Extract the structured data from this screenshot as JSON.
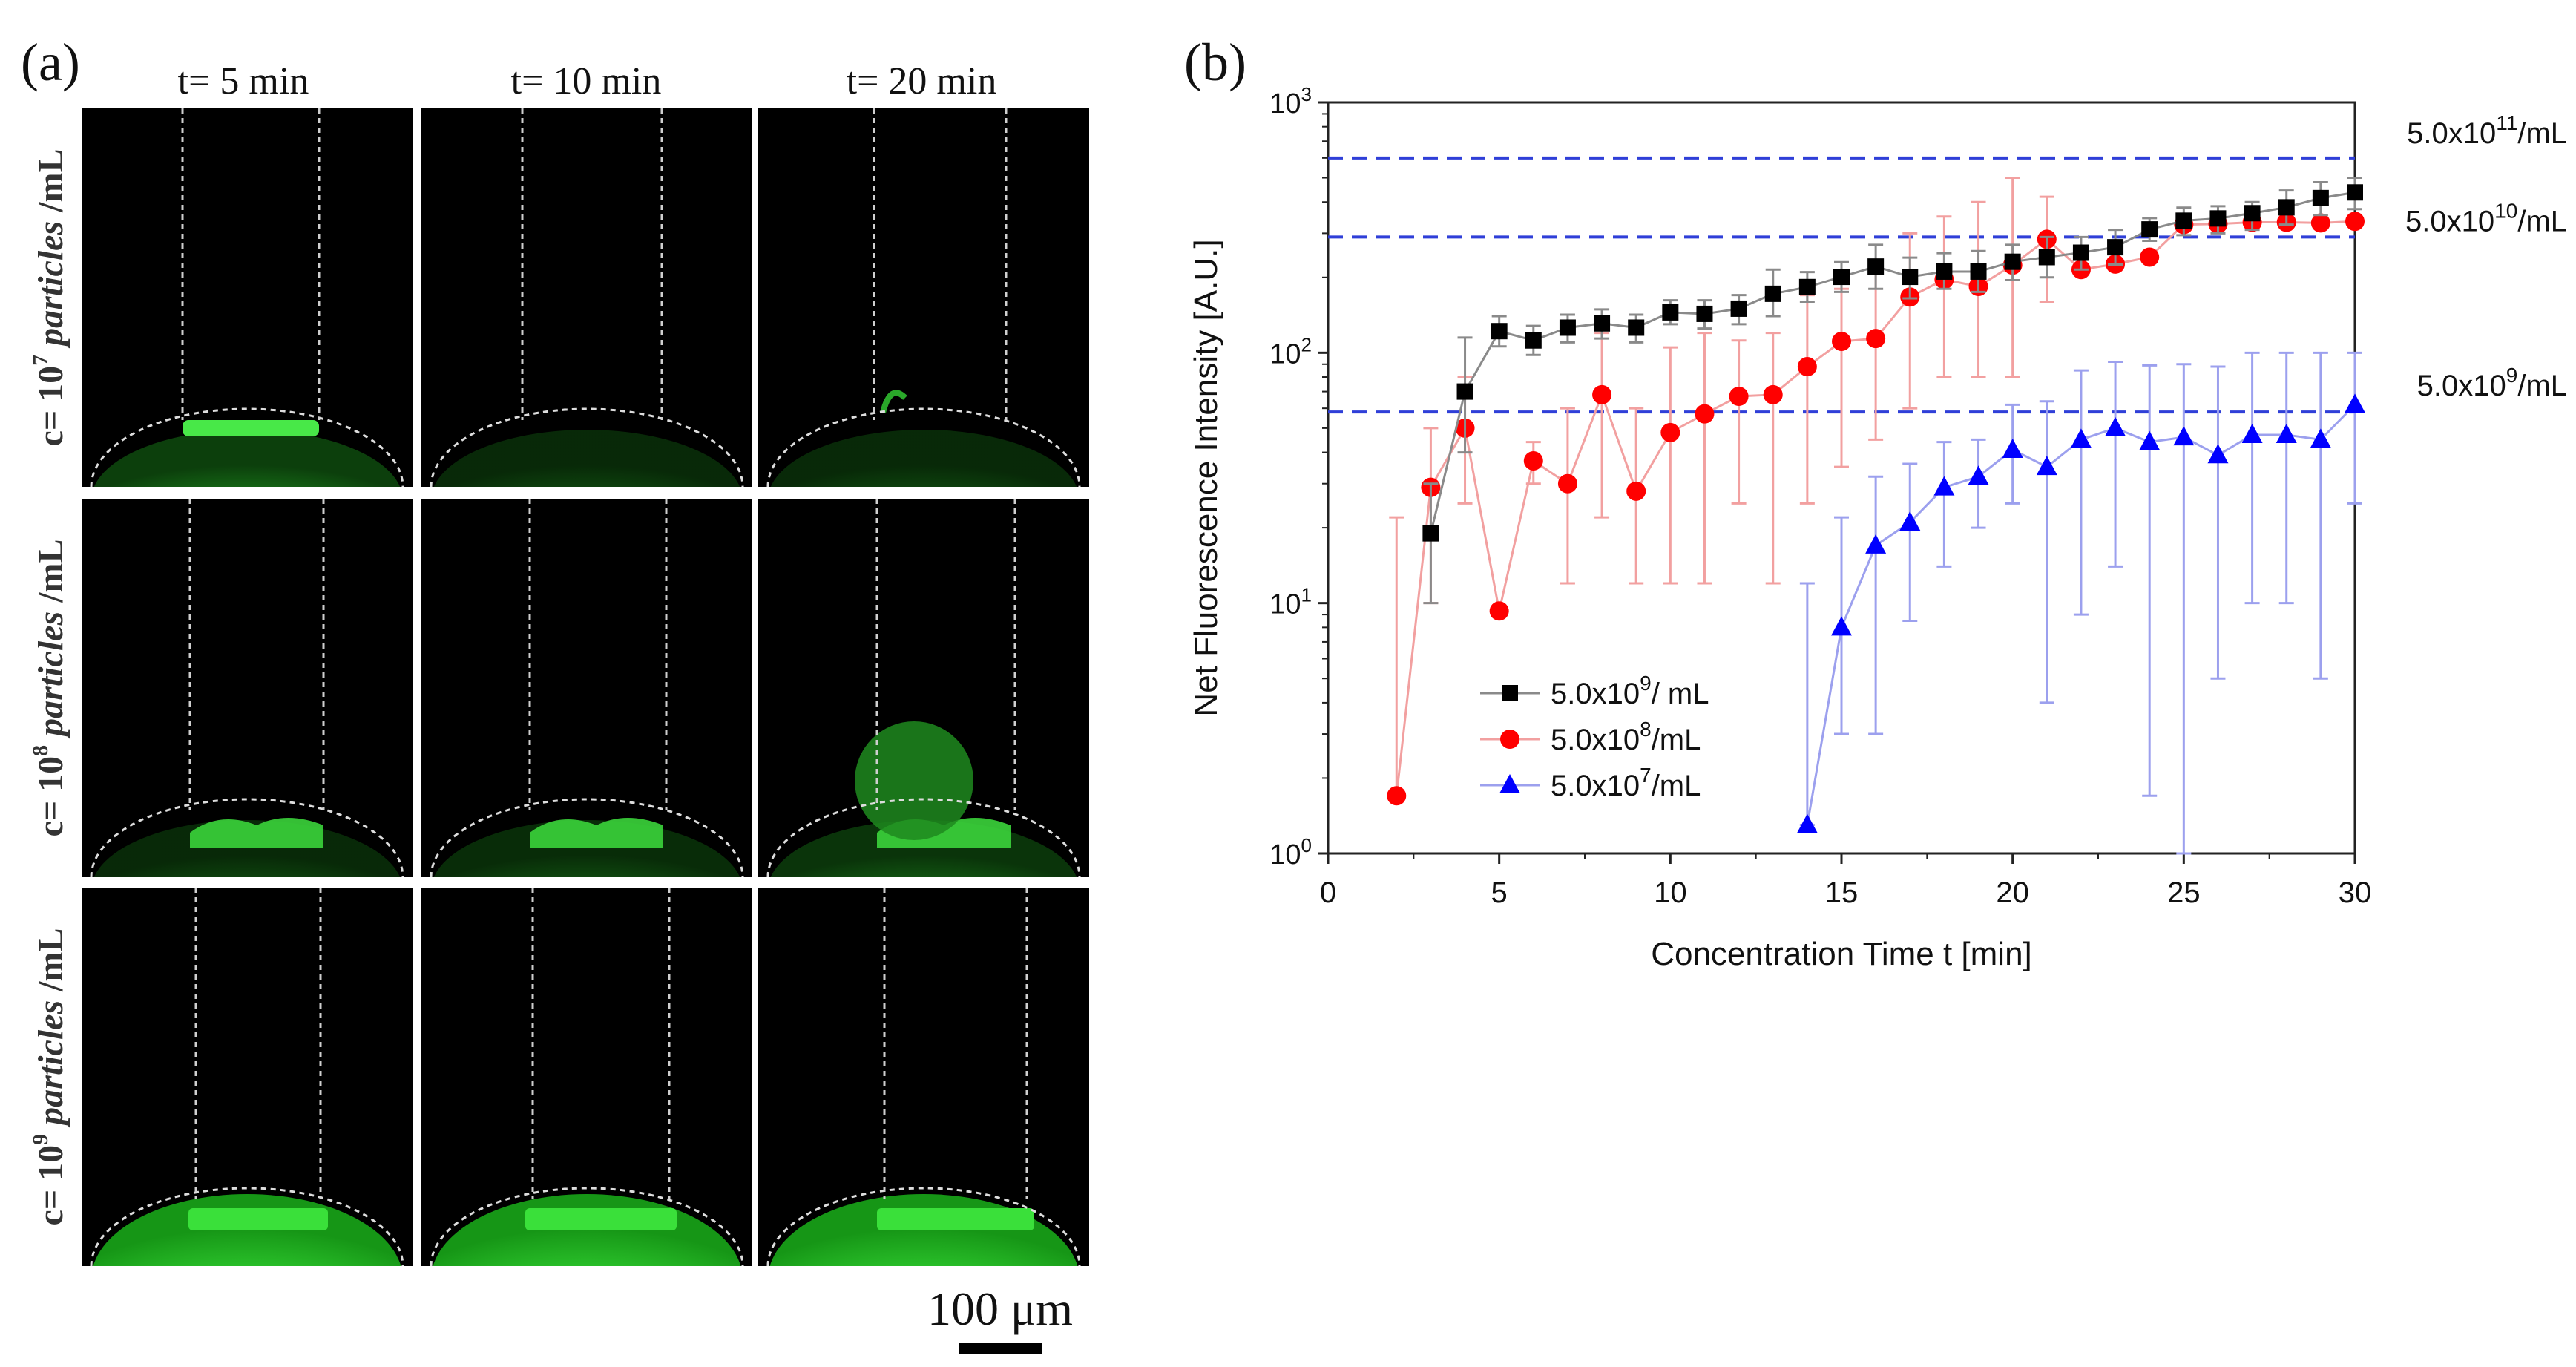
{
  "panel_a": {
    "label": "(a)",
    "columns": [
      "t= 5 min",
      "t= 10 min",
      "t= 20 min"
    ],
    "rows": [
      {
        "prefix": "c= 10",
        "exp": "7",
        "word": "particles",
        "unit": " /mL"
      },
      {
        "prefix": "c= 10",
        "exp": "8",
        "word": "particles",
        "unit": " /mL"
      },
      {
        "prefix": "c= 10",
        "exp": "9",
        "word": "particles",
        "unit": " /mL"
      }
    ],
    "scale_bar": "100 μm",
    "image_color": "#35e035"
  },
  "chart_data": {
    "label": "(b)",
    "type": "scatter",
    "xlabel": "Concentration Time t [min]",
    "ylabel": "Net Fluorescence Intensity [A.U.]",
    "xlim": [
      0,
      30
    ],
    "ylim": [
      1,
      1000
    ],
    "yscale": "log",
    "xticks": [
      "0",
      "5",
      "10",
      "15",
      "20",
      "25",
      "30"
    ],
    "yticks": [
      {
        "base": "10",
        "exp": "0"
      },
      {
        "base": "10",
        "exp": "1"
      },
      {
        "base": "10",
        "exp": "2"
      },
      {
        "base": "10",
        "exp": "3"
      }
    ],
    "reference_lines": [
      {
        "y": 600,
        "base": "5.0x10",
        "exp": "11",
        "unit": "/mL"
      },
      {
        "y": 290,
        "base": "5.0x10",
        "exp": "10",
        "unit": "/mL"
      },
      {
        "y": 58,
        "base": "5.0x10",
        "exp": "9",
        "unit": "/mL"
      }
    ],
    "series": [
      {
        "name": "5.0x10^9/ mL",
        "legend_base": "5.0x10",
        "legend_exp": "9",
        "legend_unit": "/ mL",
        "marker": "square",
        "color": "#000000",
        "err_color": "#8a8a8a",
        "x": [
          3,
          4,
          5,
          6,
          7,
          8,
          9,
          10,
          11,
          12,
          13,
          14,
          15,
          16,
          17,
          18,
          19,
          20,
          21,
          22,
          23,
          24,
          25,
          26,
          27,
          28,
          29,
          30
        ],
        "y": [
          19,
          70,
          122,
          112,
          126,
          131,
          126,
          145,
          143,
          150,
          172,
          183,
          201,
          221,
          201,
          211,
          211,
          231,
          241,
          251,
          264,
          311,
          337,
          344,
          361,
          381,
          415,
          437
        ],
        "err": [
          [
            10,
            30
          ],
          [
            40,
            115
          ],
          [
            106,
            140
          ],
          [
            98,
            128
          ],
          [
            110,
            142
          ],
          [
            114,
            149
          ],
          [
            110,
            142
          ],
          [
            130,
            162
          ],
          [
            125,
            162
          ],
          [
            130,
            170
          ],
          [
            140,
            215
          ],
          [
            160,
            210
          ],
          [
            175,
            230
          ],
          [
            180,
            270
          ],
          [
            165,
            240
          ],
          [
            180,
            250
          ],
          [
            175,
            255
          ],
          [
            195,
            270
          ],
          [
            200,
            290
          ],
          [
            215,
            290
          ],
          [
            225,
            310
          ],
          [
            280,
            345
          ],
          [
            295,
            380
          ],
          [
            300,
            385
          ],
          [
            310,
            400
          ],
          [
            325,
            445
          ],
          [
            355,
            480
          ],
          [
            375,
            500
          ]
        ]
      },
      {
        "name": "5.0x10^8/mL",
        "legend_base": "5.0x10",
        "legend_exp": "8",
        "legend_unit": "/mL",
        "marker": "circle",
        "color": "#ff0000",
        "err_color": "#f2a0a0",
        "x": [
          2,
          3,
          4,
          5,
          6,
          7,
          8,
          9,
          10,
          11,
          12,
          13,
          14,
          15,
          16,
          17,
          18,
          19,
          20,
          21,
          22,
          23,
          24,
          25,
          26,
          27,
          28,
          29,
          30
        ],
        "y": [
          1.7,
          29,
          50,
          9.3,
          37,
          30,
          68,
          28,
          48,
          57,
          67,
          68,
          88,
          111,
          114,
          167,
          196,
          184,
          224,
          284,
          215,
          226,
          241,
          325,
          327,
          332,
          332,
          330,
          335
        ],
        "err": [
          [
            1.7,
            22
          ],
          [
            10,
            50
          ],
          [
            25,
            80
          ],
          [
            9.3,
            9.3
          ],
          [
            30,
            44
          ],
          [
            12,
            60
          ],
          [
            22,
            120
          ],
          [
            12,
            60
          ],
          [
            12,
            105
          ],
          [
            12,
            120
          ],
          [
            25,
            112
          ],
          [
            12,
            120
          ],
          [
            25,
            170
          ],
          [
            35,
            180
          ],
          [
            45,
            210
          ],
          [
            60,
            300
          ],
          [
            80,
            350
          ],
          [
            80,
            400
          ],
          [
            80,
            500
          ],
          [
            160,
            420
          ],
          [
            215,
            215
          ],
          [
            226,
            226
          ],
          [
            241,
            241
          ],
          [
            325,
            325
          ],
          [
            327,
            327
          ],
          [
            332,
            332
          ],
          [
            332,
            332
          ],
          [
            330,
            330
          ],
          [
            335,
            335
          ]
        ]
      },
      {
        "name": "5.0x10^7/mL",
        "legend_base": "5.0x10",
        "legend_exp": "7",
        "legend_unit": "/mL",
        "marker": "triangle",
        "color": "#0000ff",
        "err_color": "#9ca0ee",
        "x": [
          14,
          15,
          16,
          17,
          18,
          19,
          20,
          21,
          22,
          23,
          24,
          25,
          26,
          27,
          28,
          29,
          30
        ],
        "y": [
          1.3,
          8,
          17,
          21,
          29,
          32,
          41,
          35,
          45,
          50,
          44,
          46,
          39,
          47,
          47,
          45,
          62
        ],
        "err": [
          [
            1.3,
            12
          ],
          [
            3,
            22
          ],
          [
            3,
            32
          ],
          [
            8.5,
            36
          ],
          [
            14,
            44
          ],
          [
            20,
            45
          ],
          [
            25,
            62
          ],
          [
            4,
            64
          ],
          [
            9,
            85
          ],
          [
            14,
            92
          ],
          [
            1.7,
            89
          ],
          [
            1,
            90
          ],
          [
            5,
            88
          ],
          [
            10,
            100
          ],
          [
            10,
            100
          ],
          [
            5,
            100
          ],
          [
            25,
            100
          ]
        ]
      }
    ]
  }
}
